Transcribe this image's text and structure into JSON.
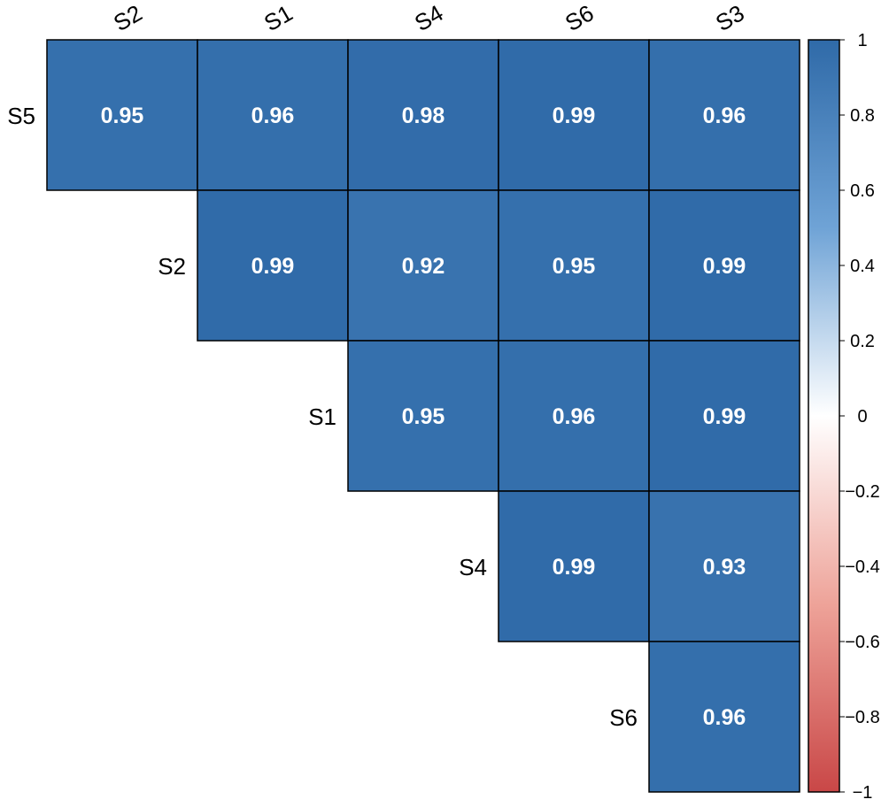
{
  "chart_data": {
    "type": "heatmap",
    "columns": [
      "S2",
      "S1",
      "S4",
      "S6",
      "S3"
    ],
    "rows": [
      "S5",
      "S2",
      "S1",
      "S4",
      "S6"
    ],
    "values": [
      [
        0.95,
        0.96,
        0.98,
        0.99,
        0.96
      ],
      [
        null,
        0.99,
        0.92,
        0.95,
        0.99
      ],
      [
        null,
        null,
        0.95,
        0.96,
        0.99
      ],
      [
        null,
        null,
        null,
        0.99,
        0.93
      ],
      [
        null,
        null,
        null,
        null,
        0.96
      ]
    ],
    "labels": [
      [
        "0.95",
        "0.96",
        "0.98",
        "0.99",
        "0.96"
      ],
      [
        null,
        "0.99",
        "0.92",
        "0.95",
        "0.99"
      ],
      [
        null,
        null,
        "0.95",
        "0.96",
        "0.99"
      ],
      [
        null,
        null,
        null,
        "0.99",
        "0.93"
      ],
      [
        null,
        null,
        null,
        null,
        "0.96"
      ]
    ],
    "colorbar": {
      "range": [
        -1,
        1
      ],
      "ticks": [
        "1",
        "0.8",
        "0.6",
        "0.4",
        "0.2",
        "0",
        "−0.2",
        "−0.4",
        "−0.6",
        "−0.8",
        "−1"
      ],
      "tick_values": [
        1,
        0.8,
        0.6,
        0.4,
        0.2,
        0,
        -0.2,
        -0.4,
        -0.6,
        -0.8,
        -1
      ],
      "colors": {
        "high": "#2f6aa8",
        "mid_high": "#6fa3d6",
        "zero": "#ffffff",
        "mid_low": "#eea399",
        "low": "#c94747"
      }
    },
    "cell_border_color": "#000000",
    "cell_text_color": "#ffffff"
  }
}
